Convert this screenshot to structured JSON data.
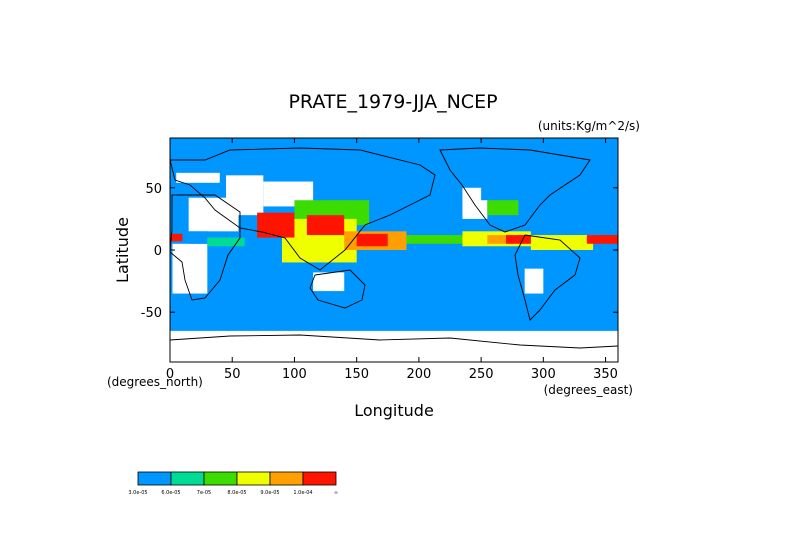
{
  "chart_data": {
    "type": "heatmap",
    "title": "PRATE_1979-JJA_NCEP",
    "units": "(units:Kg/m^2/s)",
    "xlabel": "Longitude",
    "ylabel": "Latitude",
    "x_unit_note": "(degrees_east)",
    "y_unit_note": "(degrees_north)",
    "xlim": [
      0,
      360
    ],
    "ylim": [
      -90,
      90
    ],
    "x_ticks": [
      0,
      50,
      100,
      150,
      200,
      250,
      300,
      350
    ],
    "y_ticks": [
      -50,
      0,
      50
    ],
    "x_tick_labels": [
      "0",
      "50",
      "100",
      "150",
      "200",
      "250",
      "300",
      "350"
    ],
    "y_tick_labels": [
      "-50",
      "0",
      "50"
    ],
    "colorbar": {
      "colors": [
        "#0096ff",
        "#00dc96",
        "#3cdc00",
        "#f0ff00",
        "#ffa000",
        "#ff1400"
      ],
      "labels": [
        "3.0e-05",
        "6.0e-05",
        "7e-05",
        "8.0e-05",
        "9.0e-05",
        "1.0e-04",
        "∞"
      ]
    },
    "regions": [
      {
        "level": -1,
        "lon": [
          0,
          360
        ],
        "lat": [
          -90,
          -65
        ]
      },
      {
        "level": -1,
        "lon": [
          2,
          30
        ],
        "lat": [
          -35,
          5
        ]
      },
      {
        "level": -1,
        "lon": [
          15,
          55
        ],
        "lat": [
          15,
          42
        ]
      },
      {
        "level": -1,
        "lon": [
          45,
          75
        ],
        "lat": [
          28,
          60
        ]
      },
      {
        "level": -1,
        "lon": [
          75,
          115
        ],
        "lat": [
          35,
          55
        ]
      },
      {
        "level": -1,
        "lon": [
          115,
          140
        ],
        "lat": [
          -33,
          -18
        ]
      },
      {
        "level": -1,
        "lon": [
          235,
          255
        ],
        "lat": [
          25,
          50
        ]
      },
      {
        "level": -1,
        "lon": [
          285,
          300
        ],
        "lat": [
          -35,
          -15
        ]
      },
      {
        "level": -1,
        "lon": [
          5,
          40
        ],
        "lat": [
          54,
          62
        ]
      },
      {
        "level": 0,
        "lon": [
          15,
          30
        ],
        "lat": [
          5,
          15
        ]
      },
      {
        "level": 1,
        "lon": [
          30,
          60
        ],
        "lat": [
          3,
          10
        ]
      },
      {
        "level": 0,
        "lon": [
          250,
          290
        ],
        "lat": [
          40,
          52
        ]
      },
      {
        "level": 2,
        "lon": [
          255,
          280
        ],
        "lat": [
          28,
          40
        ]
      },
      {
        "level": 2,
        "lon": [
          100,
          160
        ],
        "lat": [
          20,
          40
        ]
      },
      {
        "level": 3,
        "lon": [
          90,
          150
        ],
        "lat": [
          -10,
          25
        ]
      },
      {
        "level": 4,
        "lon": [
          140,
          190
        ],
        "lat": [
          0,
          15
        ]
      },
      {
        "level": 2,
        "lon": [
          190,
          250
        ],
        "lat": [
          5,
          12
        ]
      },
      {
        "level": 3,
        "lon": [
          235,
          290
        ],
        "lat": [
          3,
          15
        ]
      },
      {
        "level": 4,
        "lon": [
          255,
          290
        ],
        "lat": [
          5,
          12
        ]
      },
      {
        "level": 3,
        "lon": [
          290,
          340
        ],
        "lat": [
          0,
          12
        ]
      },
      {
        "level": 5,
        "lon": [
          70,
          100
        ],
        "lat": [
          10,
          30
        ]
      },
      {
        "level": 5,
        "lon": [
          110,
          140
        ],
        "lat": [
          12,
          28
        ]
      },
      {
        "level": 5,
        "lon": [
          150,
          175
        ],
        "lat": [
          3,
          13
        ]
      },
      {
        "level": 5,
        "lon": [
          270,
          290
        ],
        "lat": [
          5,
          12
        ]
      },
      {
        "level": 5,
        "lon": [
          335,
          360
        ],
        "lat": [
          5,
          12
        ]
      },
      {
        "level": 5,
        "lon": [
          0,
          10
        ],
        "lat": [
          7,
          13
        ]
      }
    ]
  }
}
